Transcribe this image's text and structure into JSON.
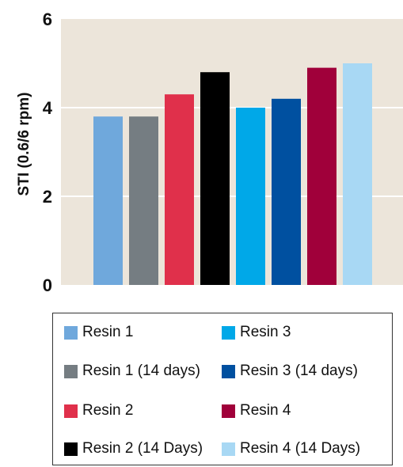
{
  "chart_data": {
    "type": "bar",
    "title": "",
    "xlabel": "",
    "ylabel": "STI (0.6/6 rpm)",
    "ylim": [
      0,
      6
    ],
    "yticks": [
      0,
      2,
      4,
      6
    ],
    "grid": true,
    "legend_placement": "bottom",
    "background": "#ece5da",
    "series": [
      {
        "name": "Resin 1",
        "value": 3.8,
        "color": "#6fa8dc"
      },
      {
        "name": "Resin 1 (14 days)",
        "value": 3.8,
        "color": "#757d82"
      },
      {
        "name": "Resin 2",
        "value": 4.3,
        "color": "#e0304b"
      },
      {
        "name": "Resin 2 (14 Days)",
        "value": 4.8,
        "color": "#000000"
      },
      {
        "name": "Resin 3",
        "value": 4.0,
        "color": "#00a8e8"
      },
      {
        "name": "Resin 3 (14 days)",
        "value": 4.2,
        "color": "#0050a0"
      },
      {
        "name": "Resin 4",
        "value": 4.9,
        "color": "#a0003a"
      },
      {
        "name": "Resin 4 (14 Days)",
        "value": 5.0,
        "color": "#a8d8f4"
      }
    ],
    "legend_order": [
      0,
      4,
      1,
      5,
      2,
      6,
      3,
      7
    ]
  }
}
